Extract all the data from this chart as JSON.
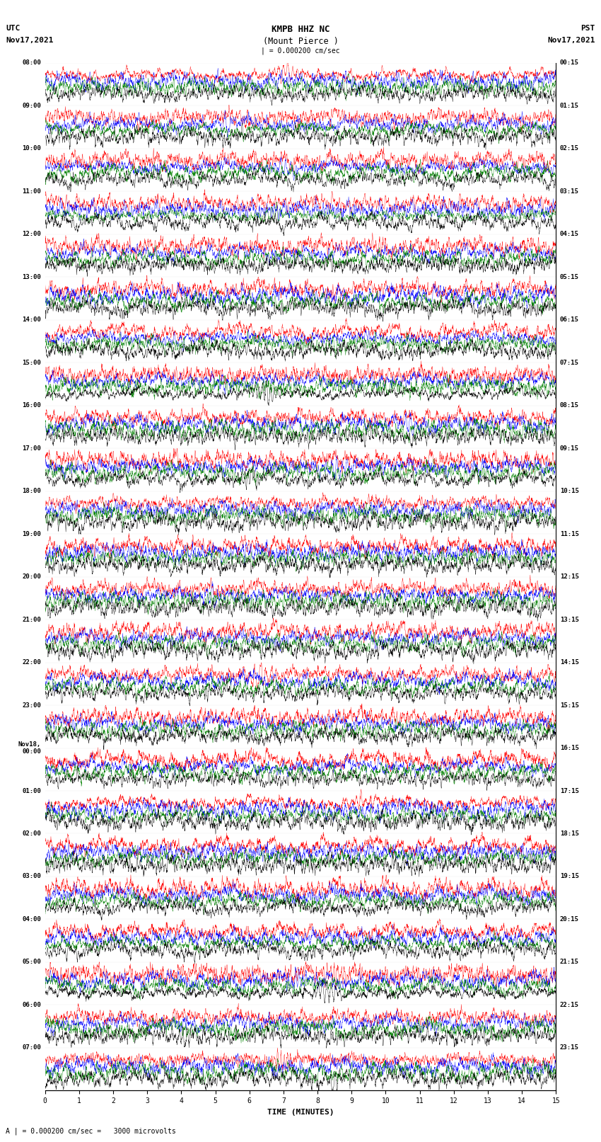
{
  "title_line1": "KMPB HHZ NC",
  "title_line2": "(Mount Pierce )",
  "title_line3": "| = 0.000200 cm/sec",
  "left_label_line1": "UTC",
  "left_label_line2": "Nov17,2021",
  "right_label_line1": "PST",
  "right_label_line2": "Nov17,2021",
  "bottom_label": "TIME (MINUTES)",
  "bottom_note": "A | = 0.000200 cm/sec =   3000 microvolts",
  "utc_times": [
    "08:00",
    "09:00",
    "10:00",
    "11:00",
    "12:00",
    "13:00",
    "14:00",
    "15:00",
    "16:00",
    "17:00",
    "18:00",
    "19:00",
    "20:00",
    "21:00",
    "22:00",
    "23:00",
    "Nov18,\n00:00",
    "01:00",
    "02:00",
    "03:00",
    "04:00",
    "05:00",
    "06:00",
    "07:00"
  ],
  "pst_times": [
    "00:15",
    "01:15",
    "02:15",
    "03:15",
    "04:15",
    "05:15",
    "06:15",
    "07:15",
    "08:15",
    "09:15",
    "10:15",
    "11:15",
    "12:15",
    "13:15",
    "14:15",
    "15:15",
    "16:15",
    "17:15",
    "18:15",
    "19:15",
    "20:15",
    "21:15",
    "22:15",
    "23:15"
  ],
  "n_rows": 24,
  "n_traces_per_row": 4,
  "colors": [
    "red",
    "blue",
    "green",
    "black"
  ],
  "minutes_per_row": 15,
  "amplitude": 0.32,
  "fig_width": 8.5,
  "fig_height": 16.13,
  "background_color": "white",
  "trace_linewidth": 0.3
}
